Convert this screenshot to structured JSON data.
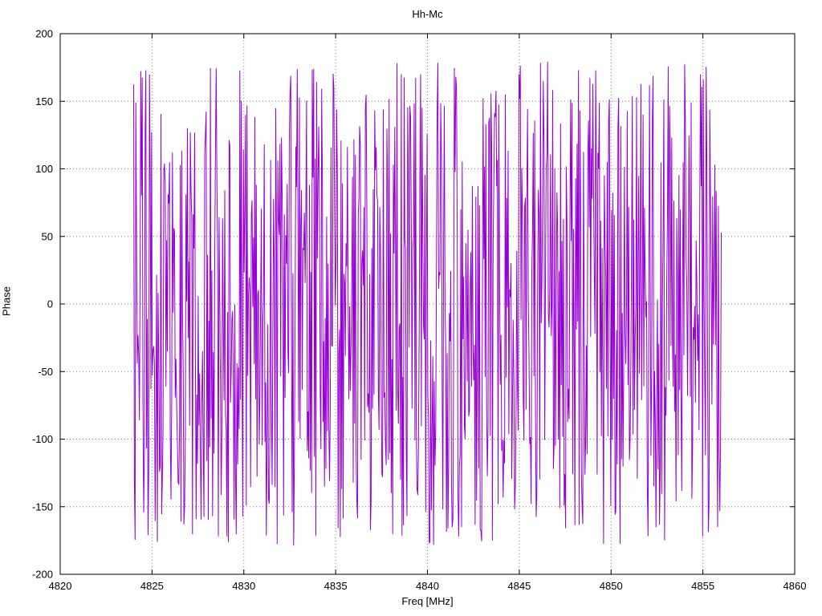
{
  "chart_data": {
    "type": "line",
    "title": "Hh-Mc",
    "xlabel": "Freq [MHz]",
    "ylabel": "Phase",
    "xlim": [
      4820,
      4860
    ],
    "ylim": [
      -200,
      200
    ],
    "x_ticks": [
      4820,
      4825,
      4830,
      4835,
      4840,
      4845,
      4850,
      4855,
      4860
    ],
    "y_ticks": [
      -200,
      -150,
      -100,
      -50,
      0,
      50,
      100,
      150,
      200
    ],
    "grid": "dotted",
    "legend": "none",
    "background": "#ffffff",
    "border_color": "#000000",
    "series": [
      {
        "name": "phase",
        "color": "#9400d3",
        "style": "line",
        "line_width": 1,
        "x_start": 4824.0,
        "x_end": 4856.0,
        "n_points": 820,
        "y_distribution": "uniform-random-wrapped-phase",
        "y_min": -180,
        "y_max": 180,
        "seed": 987654321
      }
    ]
  }
}
